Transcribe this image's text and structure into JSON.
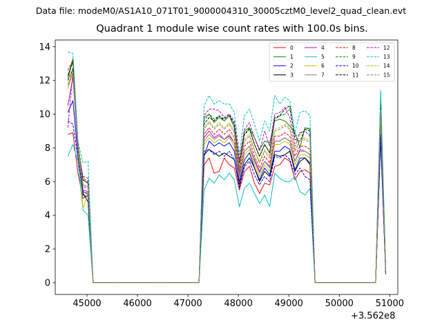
{
  "figure": {
    "suptitle": "Data file: modeM0/AS1A10_071T01_9000004310_30005cztM0_level2_quad_clean.evt"
  },
  "chart_data": {
    "type": "line",
    "title": "Quadrant 1 module wise count rates with 100.0s bins.",
    "xlabel": "",
    "ylabel": "",
    "x_offset_label": "+3.562e8",
    "xlim": [
      44370,
      51160
    ],
    "ylim": [
      -0.7,
      14.4
    ],
    "xticks": [
      45000,
      46000,
      47000,
      48000,
      49000,
      50000,
      51000
    ],
    "xtick_labels": [
      "45000",
      "46000",
      "47000",
      "48000",
      "49000",
      "50000",
      "51000"
    ],
    "yticks": [
      0,
      2,
      4,
      6,
      8,
      10,
      12,
      14
    ],
    "ytick_labels": [
      "0",
      "2",
      "4",
      "6",
      "8",
      "10",
      "12",
      "14"
    ],
    "legend_position": "top-right",
    "legend_columns": 4,
    "x": [
      44620,
      44720,
      44820,
      44920,
      45020,
      45120,
      47220,
      47320,
      47420,
      47520,
      47620,
      47720,
      47820,
      47920,
      48020,
      48120,
      48220,
      48320,
      48420,
      48520,
      48620,
      48720,
      48820,
      48920,
      49020,
      49120,
      49220,
      49320,
      49420,
      49520,
      49620,
      50720,
      50820,
      50920
    ],
    "series": [
      {
        "name": "0",
        "color": "#ff0000",
        "dash": "solid",
        "values": [
          8.8,
          8.9,
          6.5,
          5.0,
          5.2,
          0.0,
          0.0,
          7.0,
          7.4,
          6.5,
          6.6,
          7.4,
          7.0,
          6.8,
          5.5,
          6.6,
          6.9,
          5.9,
          5.3,
          5.9,
          5.8,
          6.9,
          7.0,
          7.4,
          7.2,
          6.1,
          6.6,
          6.7,
          6.5,
          0.0,
          0.0,
          0.0,
          9.3,
          0.6
        ]
      },
      {
        "name": "1",
        "color": "#008000",
        "dash": "solid",
        "values": [
          12.2,
          13.3,
          8.0,
          6.1,
          5.9,
          0.0,
          0.0,
          9.8,
          10.0,
          9.5,
          9.8,
          9.6,
          9.9,
          9.2,
          6.7,
          9.0,
          9.2,
          8.6,
          7.9,
          8.4,
          8.3,
          9.6,
          9.7,
          9.6,
          9.3,
          8.9,
          8.0,
          9.2,
          9.1,
          0.0,
          0.0,
          0.0,
          11.0,
          0.7
        ]
      },
      {
        "name": "2",
        "color": "#0000ff",
        "dash": "solid",
        "values": [
          10.1,
          10.8,
          7.5,
          5.2,
          5.1,
          0.0,
          0.0,
          7.5,
          8.4,
          8.1,
          8.3,
          8.1,
          8.3,
          7.8,
          6.0,
          7.3,
          7.7,
          6.8,
          6.1,
          6.8,
          6.4,
          7.8,
          7.8,
          8.1,
          7.9,
          6.7,
          7.4,
          7.4,
          7.1,
          0.0,
          0.0,
          0.0,
          8.5,
          0.5
        ]
      },
      {
        "name": "3",
        "color": "#000000",
        "dash": "solid",
        "values": [
          12.3,
          13.1,
          8.1,
          5.3,
          4.8,
          0.0,
          0.0,
          7.6,
          7.9,
          7.7,
          7.5,
          7.7,
          7.5,
          7.3,
          5.8,
          7.0,
          7.4,
          6.8,
          6.0,
          6.6,
          6.3,
          7.6,
          7.5,
          7.6,
          7.8,
          6.6,
          7.2,
          7.4,
          7.0,
          0.0,
          0.0,
          0.0,
          8.7,
          0.6
        ]
      },
      {
        "name": "4",
        "color": "#bf00bf",
        "dash": "solid",
        "values": [
          10.5,
          12.2,
          7.8,
          5.5,
          5.4,
          0.0,
          0.0,
          8.6,
          9.0,
          8.6,
          8.8,
          8.5,
          8.7,
          8.3,
          6.4,
          7.8,
          8.1,
          7.3,
          6.6,
          7.2,
          6.9,
          8.4,
          8.4,
          8.6,
          8.4,
          7.2,
          7.9,
          7.8,
          7.6,
          0.0,
          0.0,
          0.0,
          9.1,
          0.6
        ]
      },
      {
        "name": "5",
        "color": "#00bfbf",
        "dash": "solid",
        "values": [
          7.5,
          8.2,
          7.2,
          4.3,
          4.0,
          0.0,
          0.0,
          5.5,
          6.2,
          5.9,
          6.4,
          6.1,
          6.5,
          6.1,
          4.5,
          5.6,
          5.9,
          5.3,
          4.7,
          5.2,
          4.5,
          6.5,
          6.2,
          6.0,
          6.0,
          6.3,
          5.4,
          5.2,
          5.6,
          0.0,
          0.0,
          0.0,
          11.3,
          0.7
        ]
      },
      {
        "name": "6",
        "color": "#bfbf00",
        "dash": "solid",
        "values": [
          11.5,
          12.5,
          7.9,
          4.4,
          5.3,
          0.0,
          0.0,
          8.2,
          8.6,
          8.3,
          8.5,
          8.3,
          8.6,
          8.1,
          6.2,
          7.6,
          7.9,
          7.0,
          6.3,
          7.0,
          6.6,
          8.2,
          8.2,
          8.4,
          8.2,
          7.0,
          7.6,
          7.6,
          7.4,
          0.0,
          0.0,
          0.0,
          9.4,
          0.6
        ]
      },
      {
        "name": "7",
        "color": "#7f7f7f",
        "dash": "solid",
        "values": [
          11.7,
          12.6,
          8.0,
          5.4,
          5.2,
          0.0,
          0.0,
          8.4,
          8.8,
          8.5,
          8.7,
          8.5,
          8.8,
          8.3,
          6.3,
          7.8,
          8.1,
          7.2,
          6.5,
          7.2,
          6.8,
          8.4,
          8.4,
          8.6,
          8.4,
          7.2,
          7.8,
          7.8,
          7.6,
          0.0,
          0.0,
          0.0,
          9.6,
          0.6
        ]
      },
      {
        "name": "8",
        "color": "#ff0000",
        "dash": "dashed",
        "values": [
          12.6,
          13.2,
          8.3,
          5.7,
          5.6,
          0.0,
          0.0,
          8.8,
          9.2,
          8.8,
          9.1,
          8.8,
          9.1,
          8.6,
          6.6,
          8.1,
          8.4,
          7.5,
          6.8,
          7.5,
          7.1,
          8.7,
          8.7,
          8.9,
          8.7,
          7.5,
          8.1,
          8.1,
          7.9,
          0.0,
          0.0,
          0.0,
          9.9,
          0.6
        ]
      },
      {
        "name": "9",
        "color": "#008000",
        "dash": "dashed",
        "values": [
          12.1,
          13.2,
          8.2,
          6.2,
          6.0,
          0.0,
          0.0,
          9.6,
          10.0,
          9.7,
          9.9,
          9.6,
          9.9,
          9.4,
          7.1,
          8.8,
          9.2,
          8.2,
          7.5,
          8.2,
          7.7,
          9.7,
          9.9,
          10.0,
          10.3,
          8.7,
          8.8,
          9.1,
          9.2,
          0.0,
          0.0,
          0.0,
          10.6,
          0.7
        ]
      },
      {
        "name": "10",
        "color": "#0000ff",
        "dash": "dashed",
        "values": [
          9.6,
          9.4,
          7.4,
          5.4,
          5.3,
          0.0,
          0.0,
          7.8,
          7.9,
          7.6,
          7.8,
          7.5,
          7.8,
          7.3,
          5.6,
          6.9,
          7.2,
          6.4,
          5.8,
          6.3,
          6.0,
          7.5,
          7.4,
          7.6,
          7.3,
          6.4,
          6.8,
          6.3,
          6.1,
          0.0,
          0.0,
          0.0,
          8.8,
          0.6
        ]
      },
      {
        "name": "11",
        "color": "#000000",
        "dash": "dashed",
        "values": [
          12.0,
          12.7,
          8.1,
          6.1,
          5.9,
          0.0,
          0.0,
          9.4,
          9.8,
          9.6,
          9.9,
          9.7,
          10.0,
          9.4,
          7.1,
          8.8,
          9.1,
          8.2,
          7.5,
          8.2,
          7.7,
          9.8,
          9.9,
          10.3,
          10.5,
          8.5,
          8.4,
          9.1,
          9.0,
          0.0,
          0.0,
          0.0,
          10.5,
          0.7
        ]
      },
      {
        "name": "12",
        "color": "#bf00bf",
        "dash": "dashed",
        "values": [
          9.2,
          12.5,
          7.9,
          6.3,
          6.2,
          0.0,
          0.0,
          9.9,
          10.3,
          10.3,
          10.2,
          9.8,
          10.0,
          9.6,
          7.3,
          9.1,
          9.5,
          8.6,
          7.8,
          9.0,
          8.1,
          10.0,
          10.1,
          10.4,
          9.8,
          8.1,
          8.9,
          9.0,
          8.7,
          0.0,
          0.0,
          0.0,
          10.4,
          0.7
        ]
      },
      {
        "name": "13",
        "color": "#00bfbf",
        "dash": "dashed",
        "values": [
          13.7,
          13.6,
          8.4,
          7.1,
          7.2,
          0.0,
          0.0,
          10.5,
          11.1,
          10.6,
          10.8,
          10.6,
          10.6,
          10.1,
          7.6,
          9.9,
          10.3,
          9.4,
          8.4,
          9.6,
          9.0,
          11.1,
          10.6,
          11.0,
          10.8,
          8.9,
          10.1,
          10.2,
          9.9,
          0.0,
          0.0,
          0.0,
          11.4,
          0.8
        ]
      },
      {
        "name": "14",
        "color": "#bfbf00",
        "dash": "dashed",
        "values": [
          12.1,
          12.5,
          8.0,
          5.8,
          5.7,
          0.0,
          0.0,
          9.2,
          9.6,
          9.2,
          9.5,
          9.2,
          9.5,
          9.0,
          6.9,
          8.5,
          8.8,
          7.9,
          7.2,
          7.9,
          7.5,
          9.1,
          9.2,
          9.4,
          9.2,
          7.9,
          8.5,
          8.6,
          8.4,
          0.0,
          0.0,
          0.0,
          10.2,
          0.7
        ]
      },
      {
        "name": "15",
        "color": "#7f7f7f",
        "dash": "dashed",
        "values": [
          11.8,
          12.3,
          8.2,
          5.8,
          5.7,
          0.0,
          0.0,
          9.1,
          9.5,
          9.1,
          9.4,
          9.1,
          9.4,
          8.9,
          6.8,
          8.4,
          8.7,
          7.8,
          7.1,
          7.8,
          7.4,
          9.0,
          9.1,
          9.3,
          9.1,
          7.8,
          8.4,
          8.5,
          8.3,
          0.0,
          0.0,
          0.0,
          10.1,
          0.7
        ]
      }
    ]
  }
}
